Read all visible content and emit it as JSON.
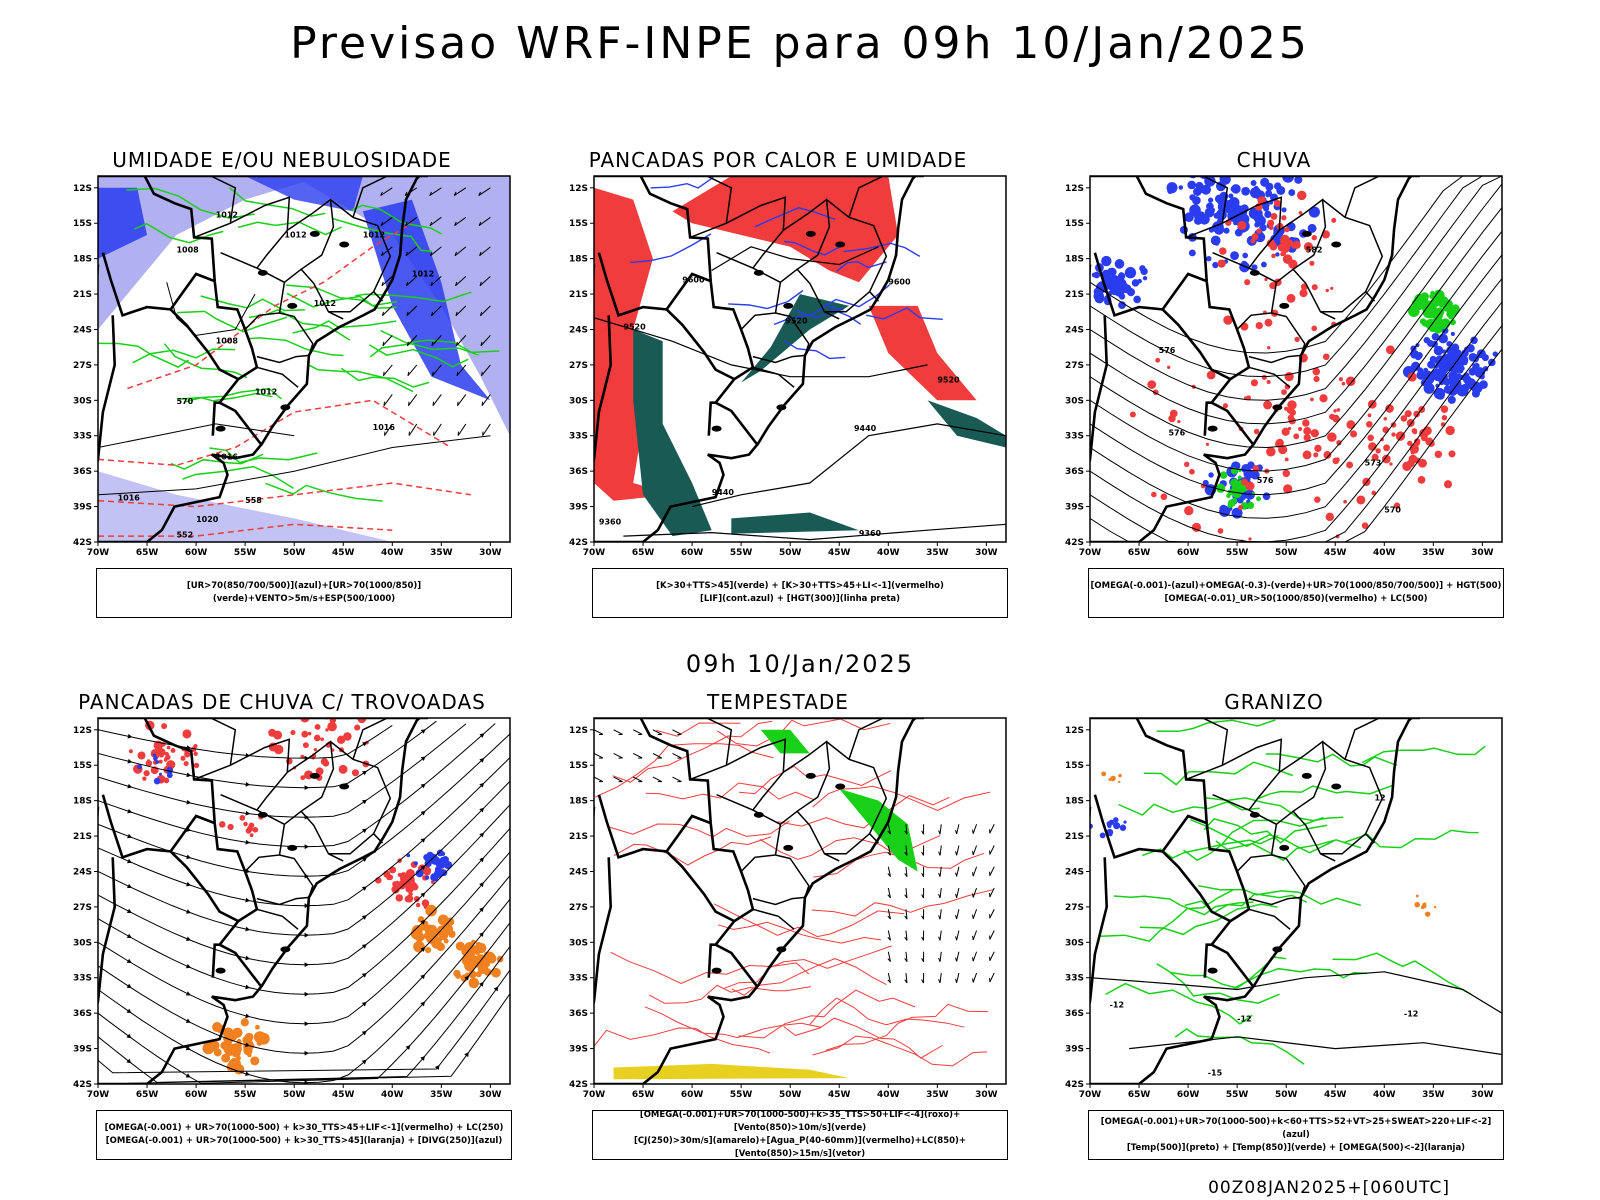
{
  "title": "Previsao WRF-INPE  para 09h 10/Jan/2025",
  "subtitle": "09h 10/Jan/2025",
  "footer": "00Z08JAN2025+[060UTC]",
  "axes": {
    "lat_labels": [
      "12S",
      "15S",
      "18S",
      "21S",
      "24S",
      "27S",
      "30S",
      "33S",
      "36S",
      "39S",
      "42S"
    ],
    "lon_labels": [
      "70W",
      "65W",
      "60W",
      "55W",
      "50W",
      "45W",
      "40W",
      "35W",
      "30W"
    ]
  },
  "colors": {
    "blue": "#2a3cf0",
    "lightblue": "#a8a8f0",
    "green": "#18d018",
    "red": "#f03c3c",
    "orange": "#f08020",
    "teal": "#1a5a55",
    "yellow": "#e8d020"
  },
  "panels": [
    {
      "title": "UMIDADE E/OU NEBULOSIDADE",
      "legend": [
        "[UR>70(850/700/500)](azul)+[UR>70(1000/850)](verde)+VENTO>5m/s+ESP(500/1000)"
      ],
      "labels": [
        "1012",
        "1012",
        "1012",
        "1012",
        "1012",
        "1008",
        "1008",
        "1012",
        "1016",
        "1016",
        "1016",
        "1020",
        "570",
        "558",
        "552"
      ]
    },
    {
      "title": "PANCADAS POR CALOR E UMIDADE",
      "legend": [
        "[K>30+TTS>45](verde) + [K>30+TTS>45+LI<-1](vermelho)",
        "[LIF](cont.azul) + [HGT(300)](linha preta)"
      ],
      "labels": [
        "9600",
        "9600",
        "9520",
        "9520",
        "9520",
        "9440",
        "9440",
        "9360",
        "9360"
      ]
    },
    {
      "title": "CHUVA",
      "legend": [
        "[OMEGA(-0.001)-(azul)+OMEGA(-0.3)-(verde)+UR>70(1000/850/700/500)] + HGT(500)",
        "[OMEGA(-0.01)_UR>50(1000/850)(vermelho) + LC(500)"
      ],
      "labels": [
        "582",
        "576",
        "576",
        "573",
        "570",
        "576"
      ]
    },
    {
      "title": "PANCADAS DE CHUVA C/ TROVOADAS",
      "legend": [
        "[OMEGA(-0.001) + UR>70(1000-500) + k>30_TTS>45+LIF<-1](vermelho) + LC(250)",
        "[OMEGA(-0.001) + UR>70(1000-500) + k>30_TTS>45](laranja) + [DIVG(250)](azul)"
      ],
      "labels": []
    },
    {
      "title": "TEMPESTADE",
      "legend": [
        "[OMEGA(-0.001)+UR>70(1000-500)+k>35_TTS>50+LIF<-4](roxo)+[Vento(850)>10m/s](verde)",
        "[CJ(250)>30m/s](amarelo)+[Agua_P(40-60mm)](vermelho)+LC(850)+[Vento(850)>15m/s](vetor)"
      ],
      "labels": []
    },
    {
      "title": "GRANIZO",
      "legend": [
        "[OMEGA(-0.001)+UR>70(1000-500)+k<60+TTS>52+VT>25+SWEAT>220+LIF<-2](azul)",
        "[Temp(500)](preto) + [Temp(850)](verde) + [OMEGA(500)<-2](laranja)"
      ],
      "labels": [
        "-12",
        "-12",
        "-12",
        "12",
        "-15"
      ]
    }
  ]
}
